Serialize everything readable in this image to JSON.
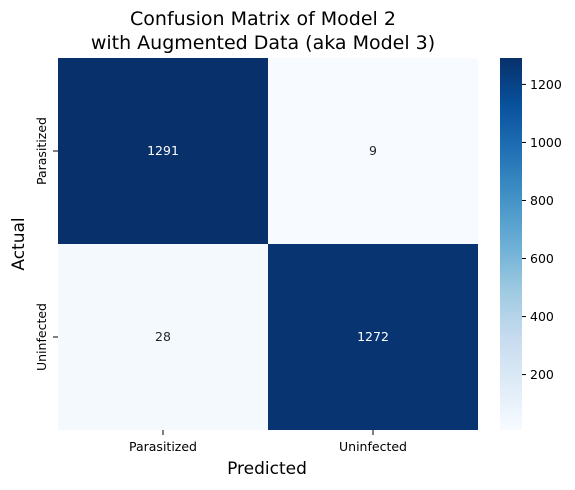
{
  "chart_data": {
    "type": "heatmap",
    "title_lines": [
      "Confusion Matrix of Model 2",
      "with Augmented Data (aka Model 3)"
    ],
    "xlabel": "Predicted",
    "ylabel": "Actual",
    "x_categories": [
      "Parasitized",
      "Uninfected"
    ],
    "y_categories": [
      "Parasitized",
      "Uninfected"
    ],
    "values": [
      [
        1291,
        9
      ],
      [
        28,
        1272
      ]
    ],
    "colormap": "Blues",
    "colorbar": {
      "min": 9,
      "max": 1291,
      "ticks": [
        200,
        400,
        600,
        800,
        1000,
        1200
      ],
      "tick_labels": [
        "200",
        "400",
        "600",
        "800",
        "1000",
        "1200"
      ]
    },
    "colors": {
      "low": "#f7fbff",
      "high": "#08306b",
      "text_on_dark": "#ffffff",
      "text_on_light": "#262626"
    }
  }
}
